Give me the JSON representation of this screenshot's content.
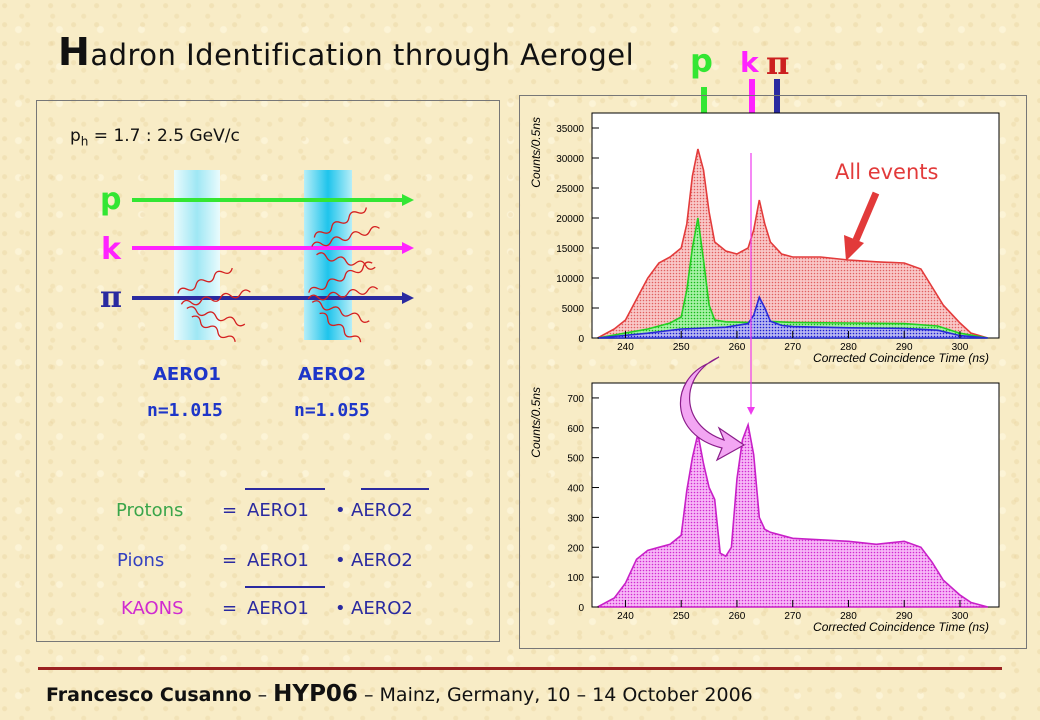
{
  "title": {
    "first_letter": "H",
    "rest": "adron Identification through Aerogel"
  },
  "header_particles": {
    "p": "p",
    "k": "k",
    "pi": "π"
  },
  "momentum": {
    "p": "p",
    "sub": "h",
    "value": " = 1.7 : 2.5 GeV/c"
  },
  "particles": {
    "p": "p",
    "k": "k",
    "pi": "π"
  },
  "aero1": {
    "name": "AERO1",
    "n": "n=1.015"
  },
  "aero2": {
    "name": "AERO2",
    "n": "n=1.055"
  },
  "equations": [
    {
      "lhs": "Protons",
      "eq": "=",
      "a": "AERO1",
      "dot": "•",
      "b": "AERO2",
      "lhs_color": "#3aa54a",
      "bar_a": true,
      "bar_b": true
    },
    {
      "lhs": "Pions",
      "eq": "=",
      "a": "AERO1",
      "dot": "•",
      "b": "AERO2",
      "lhs_color": "#3340c0",
      "bar_a": false,
      "bar_b": false
    },
    {
      "lhs": "KAONS",
      "eq": "=",
      "a": "AERO1",
      "dot": "•",
      "b": "AERO2",
      "lhs_color": "#d02ad0",
      "bar_a": true,
      "bar_b": false
    }
  ],
  "all_events": "All events",
  "colors": {
    "proton": "#33e633",
    "kaon": "#ff22ff",
    "pion": "#2a2aa0",
    "aero1": "#b9f1f8",
    "aero2": "#33d2ef",
    "all": "#f08a8a"
  },
  "chart_data": [
    {
      "type": "area",
      "title": "",
      "xlabel": "Corrected Coincidence Time (ns)",
      "ylabel": "Counts/0.5ns",
      "xlim": [
        234,
        307
      ],
      "ylim": [
        0,
        37500
      ],
      "xticks": [
        240,
        250,
        260,
        270,
        280,
        290,
        300
      ],
      "yticks": [
        0,
        5000,
        10000,
        15000,
        20000,
        25000,
        30000,
        35000
      ],
      "series": [
        {
          "name": "All events",
          "x": [
            235,
            238,
            240,
            242,
            244,
            246,
            248,
            250,
            251,
            252,
            253,
            254,
            255,
            256,
            258,
            260,
            262,
            263,
            264,
            265,
            266,
            268,
            270,
            275,
            280,
            285,
            290,
            293,
            295,
            297,
            300,
            302,
            305
          ],
          "values": [
            0,
            1500,
            3000,
            6500,
            10000,
            12500,
            13500,
            15000,
            19000,
            27000,
            31500,
            28000,
            21000,
            16000,
            14500,
            14000,
            15000,
            18000,
            23000,
            19000,
            16000,
            14000,
            13500,
            13500,
            13000,
            12700,
            12500,
            11500,
            8500,
            5500,
            2500,
            800,
            0
          ]
        },
        {
          "name": "",
          "x": [
            235,
            244,
            248,
            250,
            251,
            252,
            253,
            254,
            255,
            256,
            258,
            262,
            265,
            270,
            280,
            290,
            296,
            300,
            305
          ],
          "values": [
            0,
            1500,
            2500,
            3500,
            8000,
            15000,
            20000,
            13000,
            5500,
            3000,
            2700,
            2600,
            2800,
            2600,
            2500,
            2400,
            2000,
            800,
            0
          ]
        },
        {
          "name": "",
          "x": [
            235,
            244,
            250,
            258,
            262,
            263,
            264,
            265,
            266,
            268,
            270,
            280,
            290,
            296,
            300,
            305
          ],
          "values": [
            0,
            800,
            1500,
            1800,
            2400,
            3800,
            6800,
            5000,
            2800,
            2100,
            1900,
            1700,
            1600,
            1300,
            400,
            0
          ]
        }
      ]
    },
    {
      "type": "area",
      "title": "",
      "xlabel": "Corrected Coincidence Time (ns)",
      "ylabel": "Counts/0.5ns",
      "xlim": [
        234,
        307
      ],
      "ylim": [
        0,
        750
      ],
      "xticks": [
        240,
        250,
        260,
        270,
        280,
        290,
        300
      ],
      "yticks": [
        0,
        100,
        200,
        300,
        400,
        500,
        600,
        700
      ],
      "series": [
        {
          "name": "",
          "x": [
            235,
            238,
            240,
            242,
            244,
            246,
            248,
            250,
            251,
            252,
            253,
            254,
            255,
            256,
            257,
            258,
            259,
            260,
            261,
            262,
            263,
            264,
            265,
            266,
            268,
            270,
            275,
            280,
            285,
            290,
            293,
            295,
            297,
            300,
            302,
            305
          ],
          "values": [
            0,
            30,
            80,
            160,
            190,
            200,
            210,
            240,
            390,
            500,
            580,
            480,
            400,
            360,
            180,
            170,
            200,
            430,
            560,
            610,
            510,
            300,
            260,
            250,
            240,
            230,
            225,
            220,
            210,
            220,
            200,
            150,
            90,
            40,
            15,
            0
          ]
        }
      ]
    }
  ]
}
